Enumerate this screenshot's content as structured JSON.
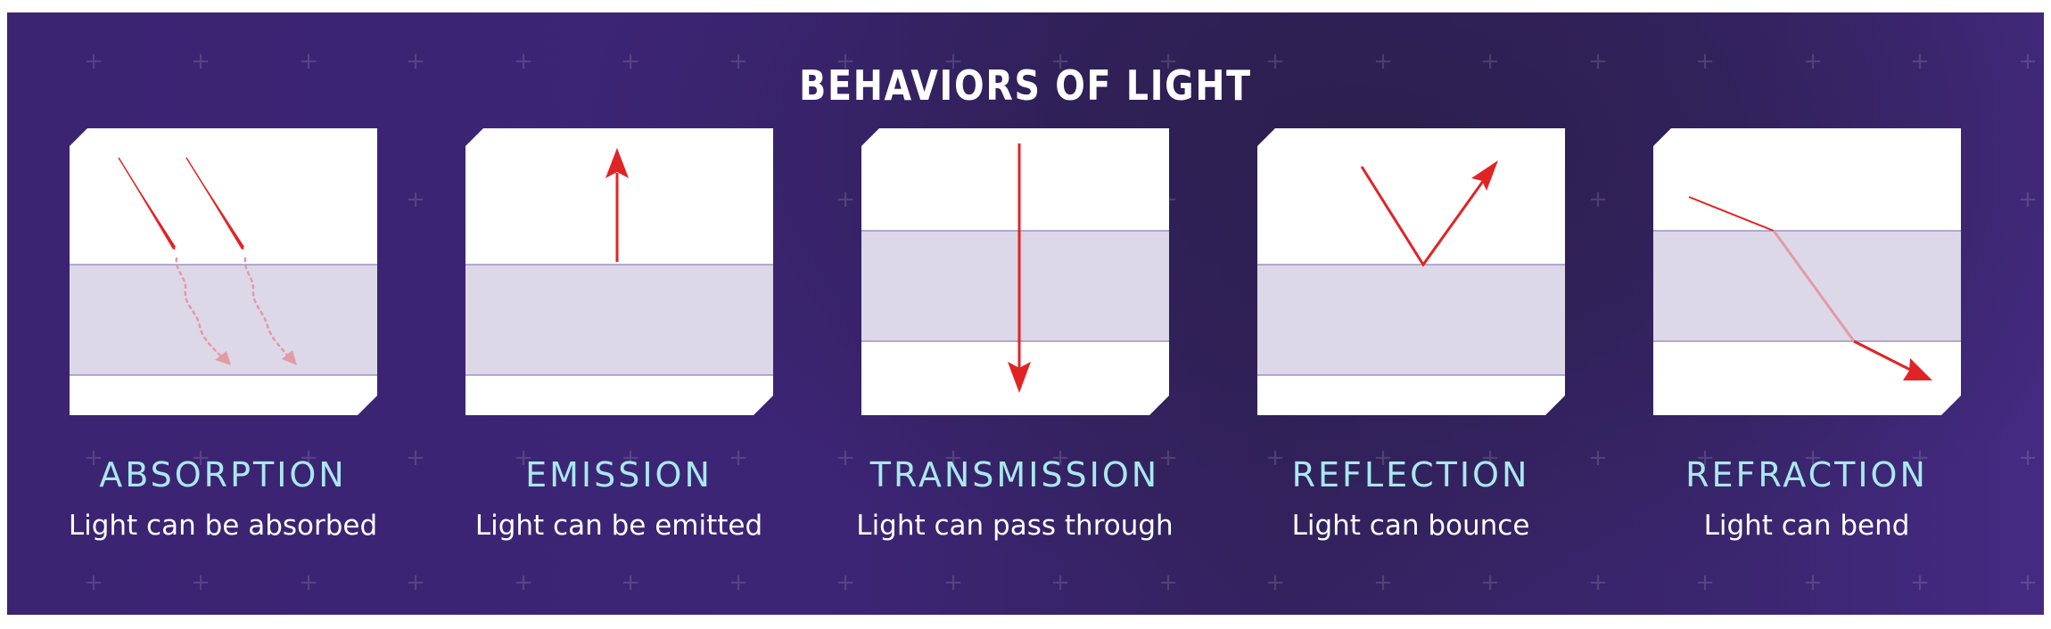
{
  "title": "BEHAVIORS OF LIGHT",
  "colors": {
    "background": "#3b2472",
    "card": "#ffffff",
    "medium": "#dcd8e8",
    "arrow": "#e02426",
    "faded_arrow": "#e39aa6",
    "label": "#a9e8ee",
    "description": "#ffffff"
  },
  "behaviors": [
    {
      "label": "ABSORPTION",
      "description": "Light can be absorbed"
    },
    {
      "label": "EMISSION",
      "description": "Light can be emitted"
    },
    {
      "label": "TRANSMISSION",
      "description": "Light can pass through"
    },
    {
      "label": "REFLECTION",
      "description": "Light can bounce"
    },
    {
      "label": "REFRACTION",
      "description": "Light can bend"
    }
  ]
}
